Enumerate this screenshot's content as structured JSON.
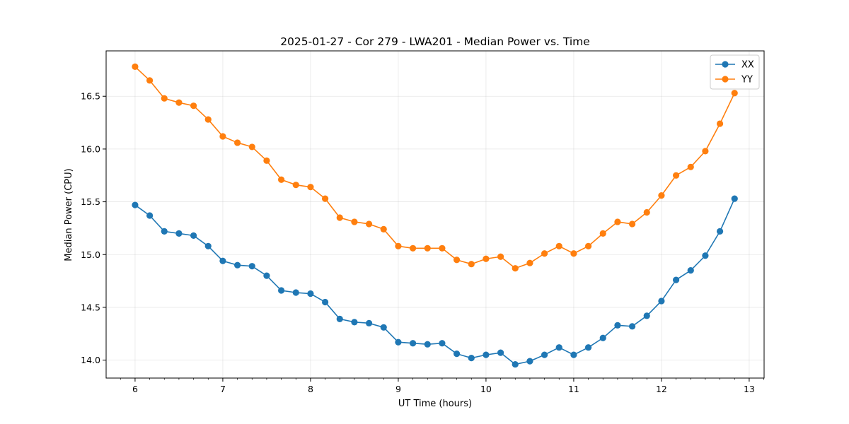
{
  "chart_data": {
    "type": "line",
    "title": "2025-01-27 - Cor 279 - LWA201 - Median Power vs. Time",
    "xlabel": "UT Time (hours)",
    "ylabel": "Median Power (CPU)",
    "xlim": [
      5.67,
      13.17
    ],
    "ylim": [
      13.83,
      16.93
    ],
    "xticks": [
      6,
      7,
      8,
      9,
      10,
      11,
      12,
      13
    ],
    "yticks": [
      14.0,
      14.5,
      15.0,
      15.5,
      16.0,
      16.5
    ],
    "xtick_labels": [
      "6",
      "7",
      "8",
      "9",
      "10",
      "11",
      "12",
      "13"
    ],
    "ytick_labels": [
      "14.0",
      "14.5",
      "15.0",
      "15.5",
      "16.0",
      "16.5"
    ],
    "grid": true,
    "legend_position": "top-right",
    "x": [
      6.0,
      6.1667,
      6.3333,
      6.5,
      6.6667,
      6.8333,
      7.0,
      7.1667,
      7.3333,
      7.5,
      7.6667,
      7.8333,
      8.0,
      8.1667,
      8.3333,
      8.5,
      8.6667,
      8.8333,
      9.0,
      9.1667,
      9.3333,
      9.5,
      9.6667,
      9.8333,
      10.0,
      10.1667,
      10.3333,
      10.5,
      10.6667,
      10.8333,
      11.0,
      11.1667,
      11.3333,
      11.5,
      11.6667,
      11.8333,
      12.0,
      12.1667,
      12.3333,
      12.5,
      12.6667,
      12.8333
    ],
    "series": [
      {
        "name": "XX",
        "color": "#1f77b4",
        "values": [
          15.47,
          15.37,
          15.22,
          15.2,
          15.18,
          15.08,
          14.94,
          14.9,
          14.89,
          14.8,
          14.66,
          14.64,
          14.63,
          14.55,
          14.39,
          14.36,
          14.35,
          14.31,
          14.17,
          14.16,
          14.15,
          14.16,
          14.06,
          14.02,
          14.05,
          14.07,
          13.96,
          13.99,
          14.05,
          14.12,
          14.05,
          14.12,
          14.21,
          14.33,
          14.32,
          14.42,
          14.56,
          14.76,
          14.85,
          14.99,
          15.22,
          15.53
        ]
      },
      {
        "name": "YY",
        "color": "#ff7f0e",
        "values": [
          16.78,
          16.65,
          16.48,
          16.44,
          16.41,
          16.28,
          16.12,
          16.06,
          16.02,
          15.89,
          15.71,
          15.66,
          15.64,
          15.53,
          15.35,
          15.31,
          15.29,
          15.24,
          15.08,
          15.06,
          15.06,
          15.06,
          14.95,
          14.91,
          14.96,
          14.98,
          14.87,
          14.92,
          15.01,
          15.08,
          15.01,
          15.08,
          15.2,
          15.31,
          15.29,
          15.4,
          15.56,
          15.75,
          15.83,
          15.98,
          16.24,
          16.53
        ]
      }
    ]
  }
}
